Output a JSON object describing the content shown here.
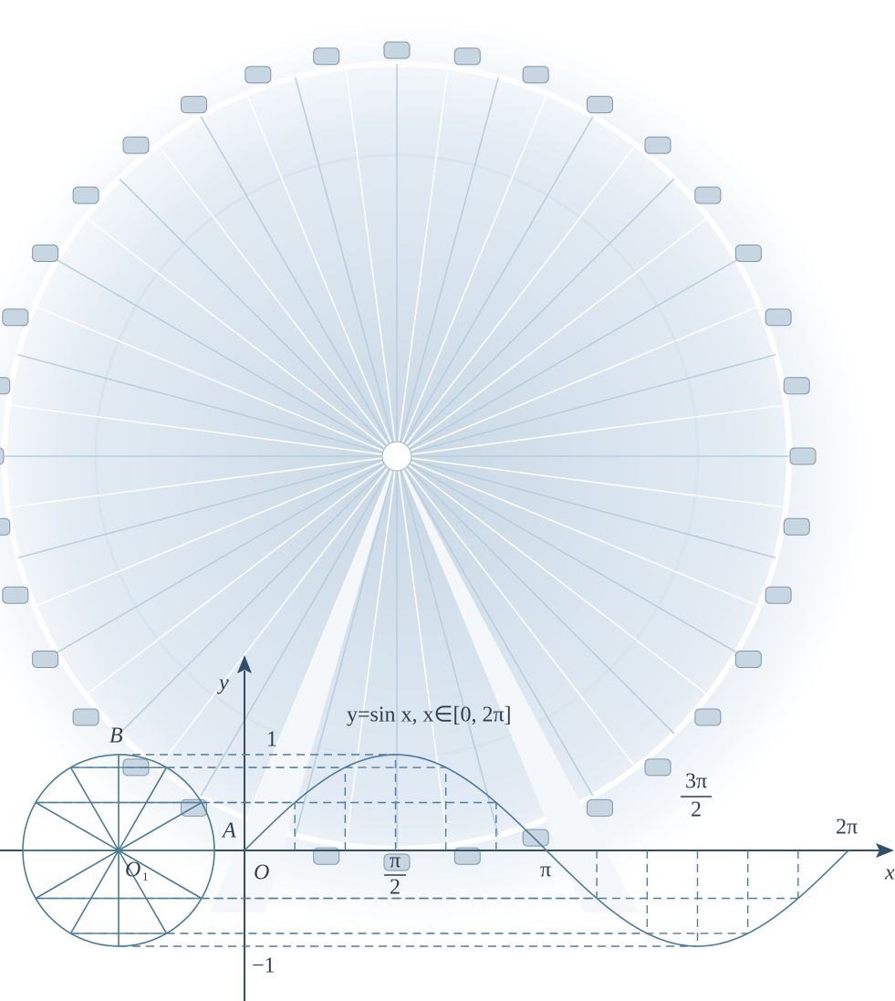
{
  "labels": {
    "y_axis": "y",
    "x_axis": "x",
    "one": "1",
    "minus_one": "−1",
    "origin": "O",
    "point_a": "A",
    "point_b": "B",
    "center": "O",
    "center_sub": "1",
    "caption": "y=sin x, x∈[0, 2π]"
  },
  "ticks": [
    {
      "numerator": "π",
      "denominator": "2"
    },
    {
      "label": "π"
    },
    {
      "numerator": "3π",
      "denominator": "2"
    },
    {
      "label": "2π"
    }
  ]
}
